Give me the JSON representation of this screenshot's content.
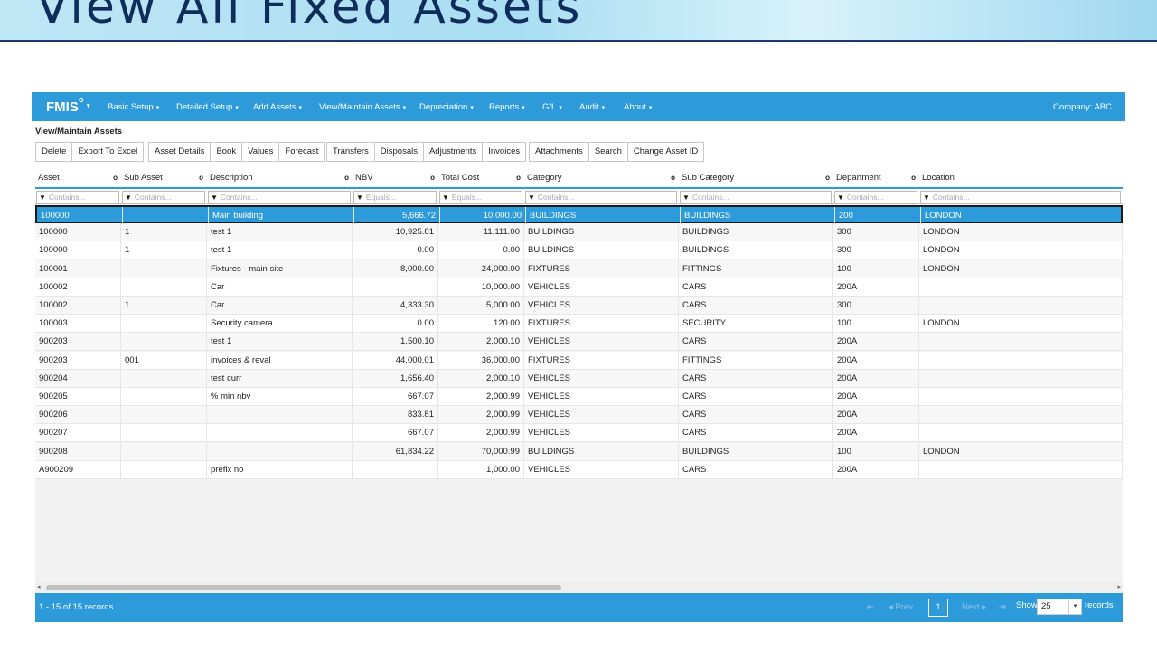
{
  "banner": {
    "title": "View All Fixed Assets"
  },
  "navbar": {
    "brand": "FMIS",
    "items": [
      {
        "label": "Basic Setup"
      },
      {
        "label": "Detailed Setup"
      },
      {
        "label": "Add Assets"
      },
      {
        "label": "View/Maintain Assets"
      },
      {
        "label": "Depreciation"
      },
      {
        "label": "Reports"
      },
      {
        "label": "G/L"
      },
      {
        "label": "Audit"
      },
      {
        "label": "About"
      }
    ],
    "company": "Company: ABC"
  },
  "page": {
    "title": "View/Maintain Assets"
  },
  "toolbar": {
    "group1": [
      "Delete",
      "Export To Excel"
    ],
    "group2": [
      "Asset Details",
      "Book",
      "Values",
      "Forecast"
    ],
    "group3": [
      "Transfers",
      "Disposals",
      "Adjustments",
      "Invoices"
    ],
    "group4": [
      "Attachments",
      "Search",
      "Change Asset ID"
    ]
  },
  "grid": {
    "columns": [
      {
        "label": "Asset",
        "filter": "Contains..."
      },
      {
        "label": "Sub Asset",
        "filter": "Contains..."
      },
      {
        "label": "Description",
        "filter": "Contains..."
      },
      {
        "label": "NBV",
        "filter": "Equals..."
      },
      {
        "label": "Total Cost",
        "filter": "Equals..."
      },
      {
        "label": "Category",
        "filter": "Contains..."
      },
      {
        "label": "Sub Category",
        "filter": "Contains..."
      },
      {
        "label": "Department",
        "filter": "Contains..."
      },
      {
        "label": "Location",
        "filter": "Contains..."
      }
    ],
    "rows": [
      [
        "100000",
        "",
        "Main building",
        "5,666.72",
        "10,000.00",
        "BUILDINGS",
        "BUILDINGS",
        "200",
        "LONDON"
      ],
      [
        "100000",
        "1",
        "test 1",
        "10,925.81",
        "11,111.00",
        "BUILDINGS",
        "BUILDINGS",
        "300",
        "LONDON"
      ],
      [
        "100000",
        "1",
        "test 1",
        "0.00",
        "0.00",
        "BUILDINGS",
        "BUILDINGS",
        "300",
        "LONDON"
      ],
      [
        "100001",
        "",
        "Fixtures - main site",
        "8,000.00",
        "24,000.00",
        "FIXTURES",
        "FITTINGS",
        "100",
        "LONDON"
      ],
      [
        "100002",
        "",
        "Car",
        "",
        "10,000.00",
        "VEHICLES",
        "CARS",
        "200A",
        ""
      ],
      [
        "100002",
        "1",
        "Car",
        "4,333.30",
        "5,000.00",
        "VEHICLES",
        "CARS",
        "300",
        ""
      ],
      [
        "100003",
        "",
        "Security camera",
        "0.00",
        "120.00",
        "FIXTURES",
        "SECURITY",
        "100",
        "LONDON"
      ],
      [
        "900203",
        "",
        "test 1",
        "1,500.10",
        "2,000.10",
        "VEHICLES",
        "CARS",
        "200A",
        ""
      ],
      [
        "900203",
        "001",
        "invoices & reval",
        "44,000.01",
        "36,000.00",
        "FIXTURES",
        "FITTINGS",
        "200A",
        ""
      ],
      [
        "900204",
        "",
        "test curr",
        "1,656.40",
        "2,000.10",
        "VEHICLES",
        "CARS",
        "200A",
        ""
      ],
      [
        "900205",
        "",
        "% min nbv",
        "667.07",
        "2,000.99",
        "VEHICLES",
        "CARS",
        "200A",
        ""
      ],
      [
        "900206",
        "",
        "",
        "833.81",
        "2,000.99",
        "VEHICLES",
        "CARS",
        "200A",
        ""
      ],
      [
        "900207",
        "",
        "",
        "667.07",
        "2,000.99",
        "VEHICLES",
        "CARS",
        "200A",
        ""
      ],
      [
        "900208",
        "",
        "",
        "61,834.22",
        "70,000.99",
        "BUILDINGS",
        "BUILDINGS",
        "100",
        "LONDON"
      ],
      [
        "A900209",
        "",
        "prefix no",
        "",
        "1,000.00",
        "VEHICLES",
        "CARS",
        "200A",
        ""
      ]
    ],
    "selected_row": 0
  },
  "pager": {
    "record_count": "1 - 15 of 15 records",
    "first": "⇤",
    "prev": "◂ Prev",
    "page": "1",
    "next": "Next ▸",
    "last": "⇥",
    "show_label": "Show",
    "page_size": "25",
    "records_label": "records"
  }
}
